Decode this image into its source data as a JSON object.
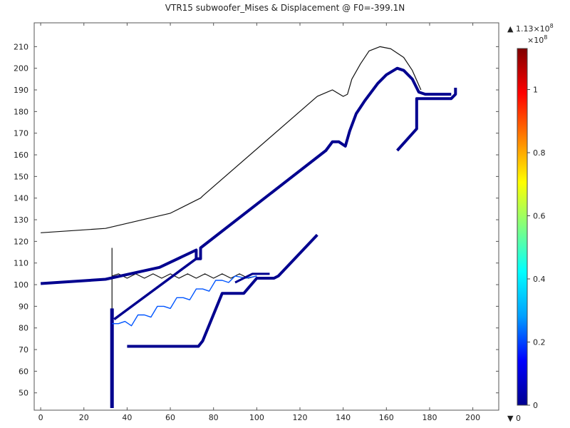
{
  "chart_data": {
    "type": "line",
    "title": "VTR15 subwoofer_Mises & Displacement @ F0=-399.1N",
    "xlim": [
      -3,
      212
    ],
    "ylim": [
      42,
      221
    ],
    "x_ticks": [
      0,
      20,
      40,
      60,
      80,
      100,
      120,
      140,
      160,
      180,
      200
    ],
    "y_ticks": [
      50,
      60,
      70,
      80,
      90,
      100,
      110,
      120,
      130,
      140,
      150,
      160,
      170,
      180,
      190,
      200,
      210
    ],
    "grid": false,
    "series": [
      {
        "kind": "undeformed-cone",
        "color": "#111111",
        "points": [
          [
            0,
            124
          ],
          [
            30,
            126
          ],
          [
            60,
            133
          ],
          [
            72,
            139
          ],
          [
            74,
            140
          ],
          [
            75,
            141
          ],
          [
            128,
            187
          ],
          [
            135,
            190
          ],
          [
            140,
            187
          ],
          [
            142,
            188
          ],
          [
            144,
            195
          ],
          [
            148,
            202
          ],
          [
            152,
            208
          ],
          [
            157,
            210
          ],
          [
            162,
            209
          ],
          [
            168,
            205
          ],
          [
            172,
            199
          ],
          [
            176,
            190
          ]
        ]
      },
      {
        "kind": "undeformed-rod",
        "color": "#111111",
        "points": [
          [
            33,
            46
          ],
          [
            33,
            117
          ]
        ]
      },
      {
        "kind": "undeformed-spider",
        "color": "#111111",
        "points": [
          [
            33,
            104
          ],
          [
            36,
            105
          ],
          [
            40,
            103
          ],
          [
            44,
            105
          ],
          [
            48,
            103
          ],
          [
            52,
            105
          ],
          [
            56,
            103
          ],
          [
            60,
            105
          ],
          [
            64,
            103
          ],
          [
            68,
            105
          ],
          [
            72,
            103
          ],
          [
            76,
            105
          ],
          [
            80,
            103
          ],
          [
            84,
            105
          ],
          [
            88,
            103
          ],
          [
            92,
            105
          ],
          [
            96,
            103
          ],
          [
            100,
            104
          ]
        ]
      },
      {
        "kind": "deformed-cone",
        "color": "#00008f",
        "points": [
          [
            0,
            100.5
          ],
          [
            30,
            102.5
          ],
          [
            55,
            108
          ],
          [
            72,
            116
          ],
          [
            72,
            112
          ],
          [
            74,
            112
          ],
          [
            74,
            117
          ],
          [
            132,
            162
          ],
          [
            135,
            166
          ],
          [
            138,
            166
          ],
          [
            141,
            164
          ],
          [
            143,
            171
          ],
          [
            146,
            179
          ],
          [
            150,
            185
          ],
          [
            156,
            193
          ],
          [
            160,
            197
          ],
          [
            165,
            200
          ],
          [
            168,
            199
          ],
          [
            172,
            195
          ],
          [
            175,
            189
          ],
          [
            178,
            188
          ],
          [
            185,
            188
          ],
          [
            190,
            188
          ]
        ]
      },
      {
        "kind": "deformed-cone-inner",
        "color": "#00008f",
        "points": [
          [
            34,
            84
          ],
          [
            72,
            112
          ]
        ]
      },
      {
        "kind": "deformed-surround-lower",
        "color": "#00008f",
        "points": [
          [
            165,
            162
          ],
          [
            174,
            172
          ],
          [
            174,
            186
          ],
          [
            190,
            186
          ],
          [
            192,
            188
          ],
          [
            192,
            191
          ]
        ]
      },
      {
        "kind": "deformed-rod",
        "color": "#00008f",
        "points": [
          [
            33,
            43
          ],
          [
            33,
            89
          ]
        ]
      },
      {
        "kind": "deformed-spider",
        "color": "#0055ff",
        "points": [
          [
            33,
            82
          ],
          [
            36,
            82
          ],
          [
            39,
            83
          ],
          [
            42,
            81
          ],
          [
            45,
            86
          ],
          [
            48,
            86
          ],
          [
            51,
            85
          ],
          [
            54,
            90
          ],
          [
            57,
            90
          ],
          [
            60,
            89
          ],
          [
            63,
            94
          ],
          [
            66,
            94
          ],
          [
            69,
            93
          ],
          [
            72,
            98
          ],
          [
            75,
            98
          ],
          [
            78,
            97
          ],
          [
            81,
            102
          ],
          [
            84,
            102
          ],
          [
            87,
            101
          ],
          [
            90,
            104
          ],
          [
            95,
            103
          ],
          [
            100,
            104
          ]
        ]
      },
      {
        "kind": "deformed-basket",
        "color": "#00008f",
        "points": [
          [
            40,
            71.5
          ],
          [
            73,
            71.5
          ],
          [
            75,
            74
          ],
          [
            84,
            96
          ],
          [
            94,
            96
          ],
          [
            100,
            103
          ],
          [
            108,
            103
          ],
          [
            110,
            104
          ],
          [
            128,
            123
          ]
        ]
      },
      {
        "kind": "deformed-basket-upper",
        "color": "#00008f",
        "points": [
          [
            90,
            101
          ],
          [
            98,
            105
          ],
          [
            106,
            105
          ]
        ]
      }
    ],
    "colorbar": {
      "max_label": "▲ 1.13×10",
      "max_exp": "8",
      "scale_label": "×10",
      "scale_exp": "8",
      "min_label": "▼ 0",
      "ticks": [
        0,
        0.2,
        0.4,
        0.6,
        0.8,
        1
      ],
      "range": [
        0,
        1.13
      ],
      "colors": [
        "#00008f",
        "#0000ff",
        "#00a0ff",
        "#00ffff",
        "#80ff80",
        "#ffff00",
        "#ff8000",
        "#ff0000",
        "#800000"
      ]
    }
  }
}
